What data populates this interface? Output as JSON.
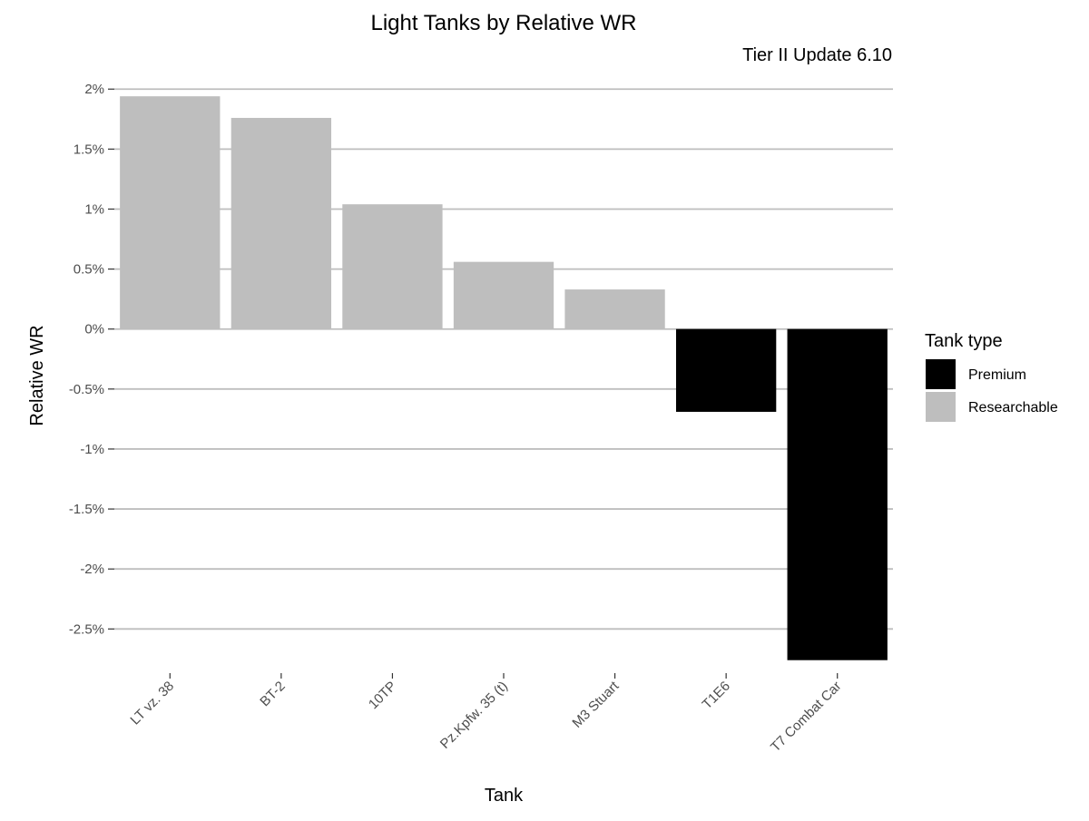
{
  "chart_data": {
    "type": "bar",
    "title": "Light Tanks by Relative WR",
    "subtitle": "Tier II Update 6.10",
    "xlabel": "Tank",
    "ylabel": "Relative WR",
    "ylim": [
      -2.8,
      2.1
    ],
    "yticks": [
      2,
      1.5,
      1,
      0.5,
      0,
      -0.5,
      -1,
      -1.5,
      -2,
      -2.5
    ],
    "ytick_labels": [
      "2%",
      "1.5%",
      "1%",
      "0.5%",
      "0%",
      "-0.5%",
      "-1%",
      "-1.5%",
      "-2%",
      "-2.5%"
    ],
    "categories": [
      "LT vz. 38",
      "BT-2",
      "10TP",
      "Pz.Kpfw. 35 (t)",
      "M3 Stuart",
      "T1E6",
      "T7 Combat Car"
    ],
    "values": [
      1.94,
      1.76,
      1.04,
      0.56,
      0.33,
      -0.69,
      -2.76
    ],
    "groups": [
      "Researchable",
      "Researchable",
      "Researchable",
      "Researchable",
      "Researchable",
      "Premium",
      "Premium"
    ],
    "grid": true,
    "legend": {
      "title": "Tank type",
      "position": "right",
      "entries": [
        {
          "label": "Premium",
          "color": "#000000"
        },
        {
          "label": "Researchable",
          "color": "#bebebe"
        }
      ]
    },
    "colors": {
      "Premium": "#000000",
      "Researchable": "#bebebe",
      "grid": "#bebebe"
    }
  }
}
